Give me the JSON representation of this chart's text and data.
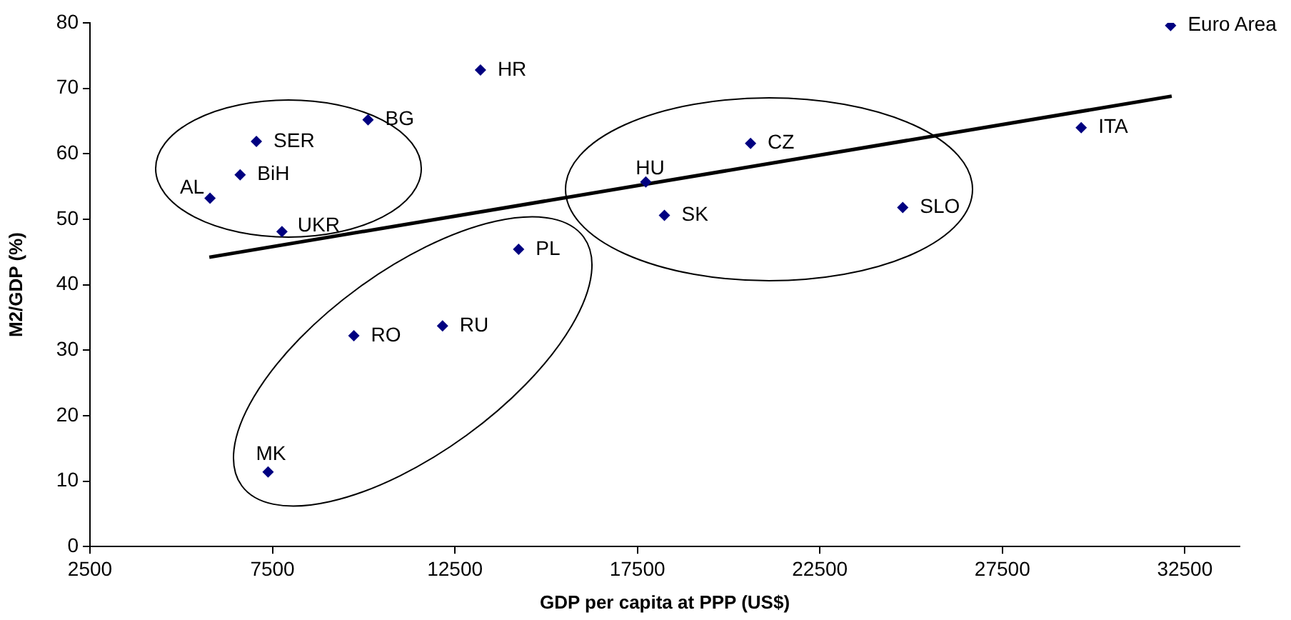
{
  "chart_data": {
    "type": "scatter",
    "xlabel": "GDP per capita at PPP (US$)",
    "ylabel": "M2/GDP (%)",
    "xlim": [
      2500,
      34000
    ],
    "xticks": [
      2500,
      7500,
      12500,
      17500,
      22500,
      27500,
      32500
    ],
    "ylim": [
      0,
      80
    ],
    "yticks": [
      0,
      10,
      20,
      30,
      40,
      50,
      60,
      70,
      80
    ],
    "grid": false,
    "legend": false,
    "marker": "diamond",
    "series": [
      {
        "color": "#000080",
        "x": [
          32110,
          29660,
          20600,
          17730,
          18240,
          24770,
          13200,
          10120,
          7060,
          6615,
          5790,
          7760,
          14245,
          9730,
          12160,
          7380
        ],
        "values": [
          79.6,
          64.0,
          61.6,
          55.7,
          50.6,
          51.8,
          72.8,
          65.2,
          61.9,
          56.8,
          53.2,
          48.1,
          45.4,
          32.2,
          33.7,
          11.4
        ]
      },
      {
        "type": "line",
        "color": "#000000",
        "marker": "none",
        "x": [
          5770,
          32140
        ],
        "values": [
          44.2,
          68.8
        ]
      }
    ],
    "annotations": [
      {
        "text": "Euro Area",
        "x": 32110,
        "y": 79.6
      },
      {
        "text": "ITA",
        "x": 29660,
        "y": 64.0
      },
      {
        "text": "CZ",
        "x": 20600,
        "y": 61.6
      },
      {
        "text": "HU",
        "x": 17730,
        "y": 55.7
      },
      {
        "text": "SK",
        "x": 18240,
        "y": 50.6
      },
      {
        "text": "SLO",
        "x": 24770,
        "y": 51.8
      },
      {
        "text": "HR",
        "x": 13200,
        "y": 72.8
      },
      {
        "text": "BG",
        "x": 10120,
        "y": 65.2
      },
      {
        "text": "SER",
        "x": 7060,
        "y": 61.9
      },
      {
        "text": "BiH",
        "x": 6615,
        "y": 56.8
      },
      {
        "text": "AL",
        "x": 5790,
        "y": 53.2
      },
      {
        "text": "UKR",
        "x": 7760,
        "y": 48.1
      },
      {
        "text": "PL",
        "x": 14245,
        "y": 45.4
      },
      {
        "text": "RO",
        "x": 9730,
        "y": 32.2
      },
      {
        "text": "RU",
        "x": 12160,
        "y": 33.7
      },
      {
        "text": "MK",
        "x": 7380,
        "y": 11.4
      }
    ]
  }
}
